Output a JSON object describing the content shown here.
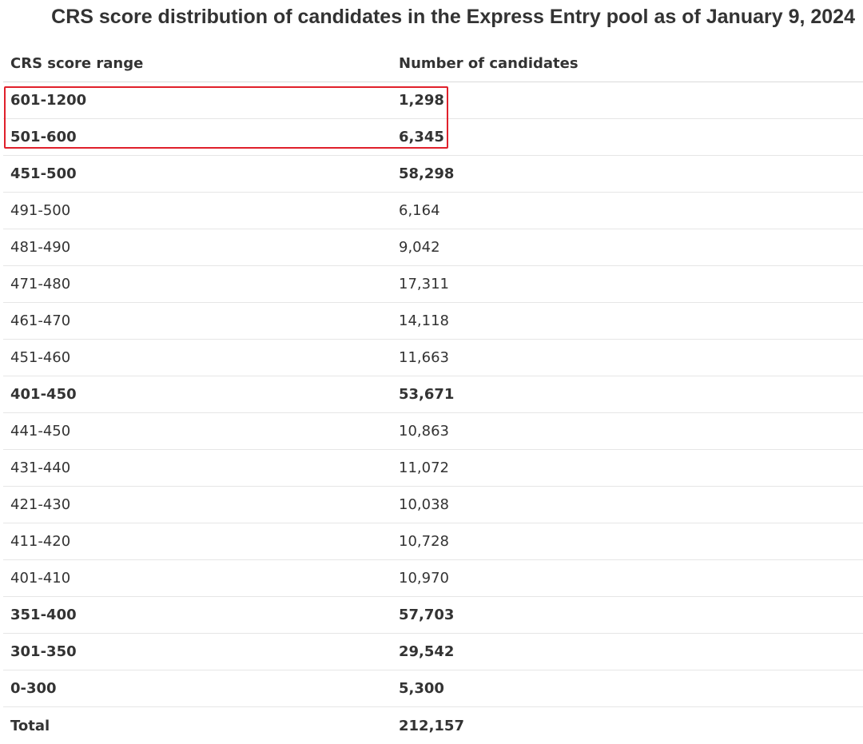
{
  "title": "CRS score distribution of candidates in the Express Entry pool as of January 9, 2024",
  "columns": [
    "CRS score range",
    "Number of candidates"
  ],
  "rows": [
    {
      "range": "601-1200",
      "count": "1,298",
      "bold": true
    },
    {
      "range": "501-600",
      "count": "6,345",
      "bold": true
    },
    {
      "range": "451-500",
      "count": "58,298",
      "bold": true
    },
    {
      "range": "491-500",
      "count": "6,164",
      "bold": false
    },
    {
      "range": "481-490",
      "count": "9,042",
      "bold": false
    },
    {
      "range": "471-480",
      "count": "17,311",
      "bold": false
    },
    {
      "range": "461-470",
      "count": "14,118",
      "bold": false
    },
    {
      "range": "451-460",
      "count": "11,663",
      "bold": false
    },
    {
      "range": "401-450",
      "count": "53,671",
      "bold": true
    },
    {
      "range": "441-450",
      "count": "10,863",
      "bold": false
    },
    {
      "range": "431-440",
      "count": "11,072",
      "bold": false
    },
    {
      "range": "421-430",
      "count": "10,038",
      "bold": false
    },
    {
      "range": "411-420",
      "count": "10,728",
      "bold": false
    },
    {
      "range": "401-410",
      "count": "10,970",
      "bold": false
    },
    {
      "range": "351-400",
      "count": "57,703",
      "bold": true
    },
    {
      "range": "301-350",
      "count": "29,542",
      "bold": true
    },
    {
      "range": "0-300",
      "count": "5,300",
      "bold": true
    },
    {
      "range": "Total",
      "count": "212,157",
      "bold": true
    }
  ],
  "highlight_color": "#e0202b"
}
